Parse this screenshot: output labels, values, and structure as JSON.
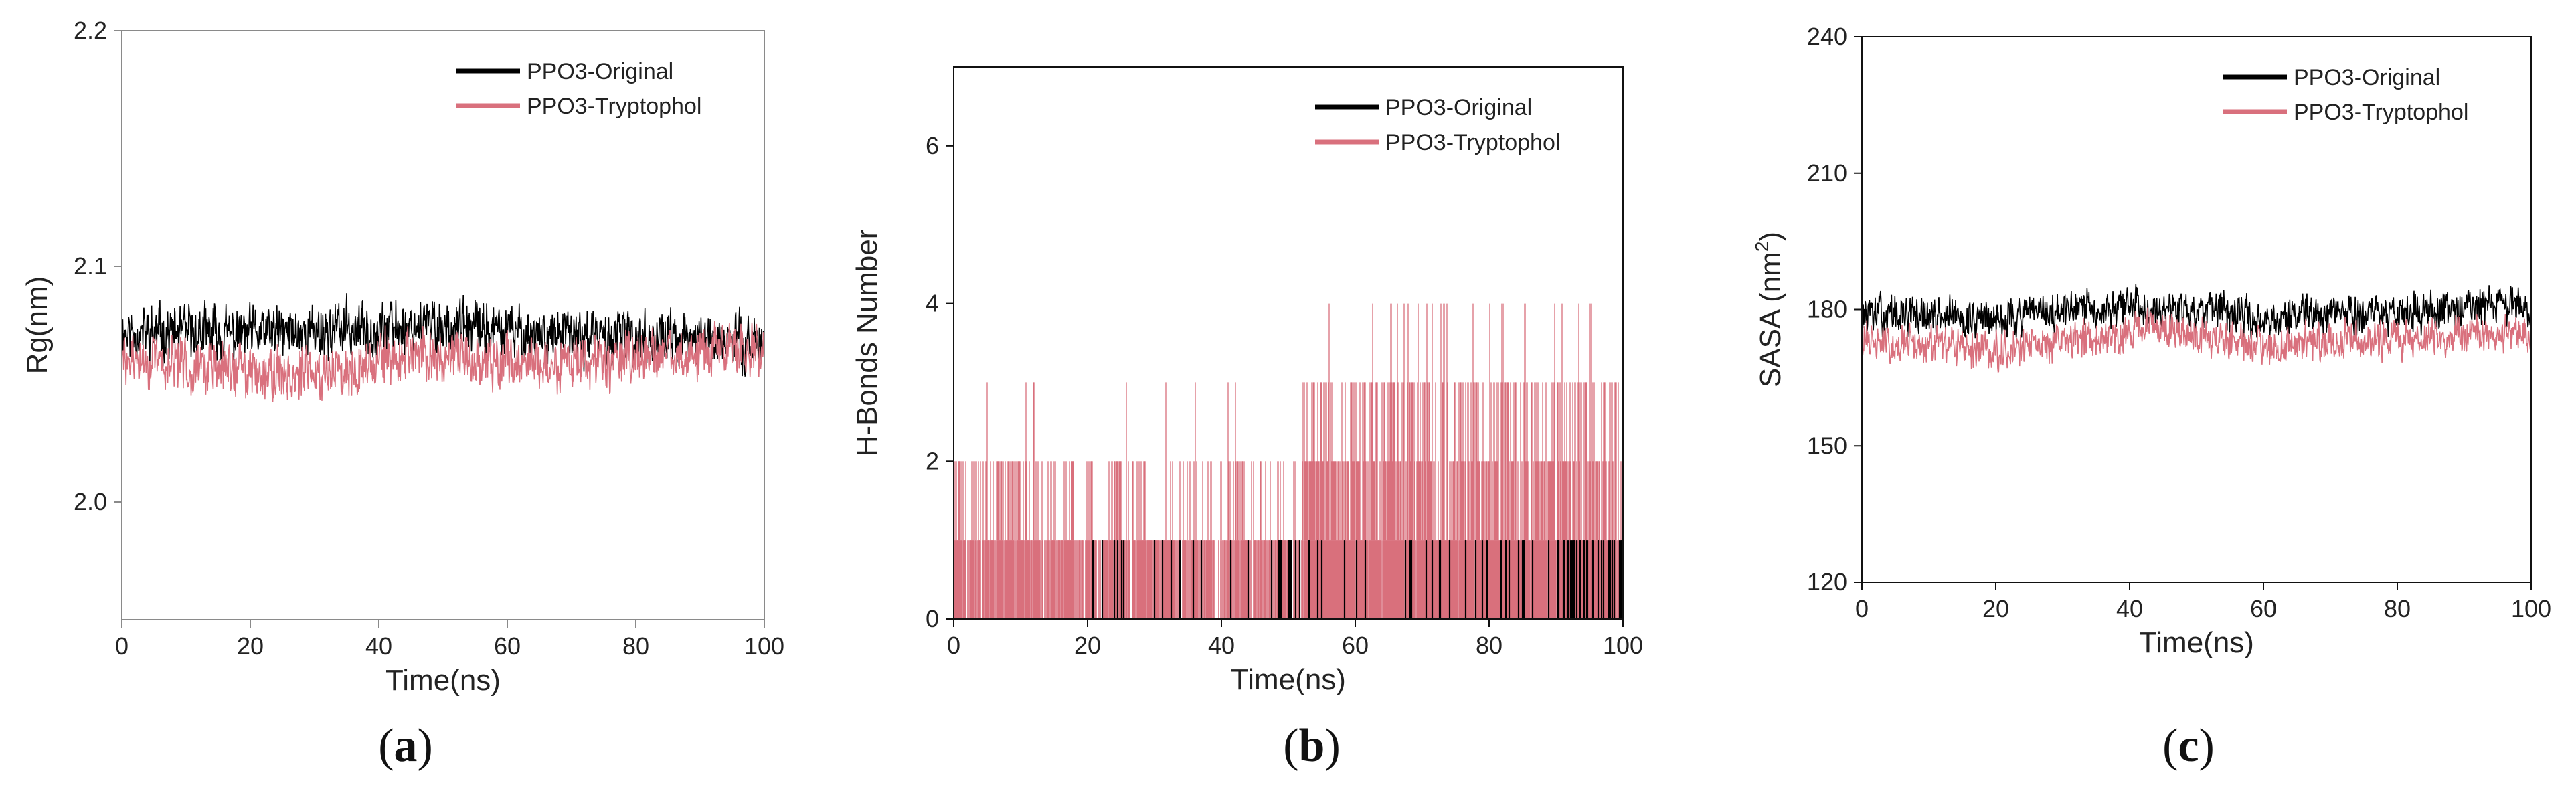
{
  "colors": {
    "original": "#000000",
    "tryptophol": "#d9707d"
  },
  "chart_data": [
    {
      "type": "line",
      "panel": "a",
      "caption_letter": "a",
      "xlabel": "Time(ns)",
      "ylabel": "Rg(nm)",
      "xlim": [
        0,
        100
      ],
      "ylim": [
        1.95,
        2.2
      ],
      "xticks": [
        "0",
        "20",
        "40",
        "60",
        "80",
        "100"
      ],
      "yticks": [
        "2.0",
        "2.1",
        "2.2"
      ],
      "ytick_values": [
        2.0,
        2.1,
        2.2
      ],
      "legend": [
        "PPO3-Original",
        "PPO3-Tryptophol"
      ],
      "legend_position": "top-right",
      "series": [
        {
          "name": "PPO3-Original",
          "mean": 2.072,
          "noise": 0.006,
          "trend": [
            [
              0,
              2.072
            ],
            [
              20,
              2.071
            ],
            [
              48,
              2.075
            ],
            [
              70,
              2.07
            ],
            [
              100,
              2.068
            ]
          ]
        },
        {
          "name": "PPO3-Tryptophol",
          "mean": 2.06,
          "noise": 0.006,
          "trend": [
            [
              0,
              2.06
            ],
            [
              28,
              2.054
            ],
            [
              45,
              2.062
            ],
            [
              70,
              2.058
            ],
            [
              100,
              2.066
            ]
          ]
        }
      ]
    },
    {
      "type": "line",
      "panel": "b",
      "caption_letter": "b",
      "xlabel": "Time(ns)",
      "ylabel": "H-Bonds Number",
      "xlim": [
        0,
        100
      ],
      "ylim": [
        0,
        7
      ],
      "xticks": [
        "0",
        "20",
        "40",
        "60",
        "80",
        "100"
      ],
      "yticks": [
        "0",
        "2",
        "4",
        "6"
      ],
      "ytick_values": [
        0,
        2,
        4,
        6
      ],
      "legend": [
        "PPO3-Original",
        "PPO3-Tryptophol"
      ],
      "legend_position": "top-right",
      "series": [
        {
          "name": "PPO3-Original",
          "discrete": true,
          "max": 1
        },
        {
          "name": "PPO3-Tryptophol",
          "discrete": true,
          "max": 4
        }
      ]
    },
    {
      "type": "line",
      "panel": "c",
      "caption_letter": "c",
      "xlabel": "Time(ns)",
      "ylabel": "SASA (nm",
      "ylabel_sup": "2",
      "ylabel_close": ")",
      "xlim": [
        0,
        100
      ],
      "ylim": [
        120,
        240
      ],
      "xticks": [
        "0",
        "20",
        "40",
        "60",
        "80",
        "100"
      ],
      "yticks": [
        "120",
        "150",
        "180",
        "210",
        "240"
      ],
      "ytick_values": [
        120,
        150,
        180,
        210,
        240
      ],
      "legend": [
        "PPO3-Original",
        "PPO3-Tryptophol"
      ],
      "legend_position": "top-right",
      "series": [
        {
          "name": "PPO3-Original",
          "mean": 179,
          "noise": 2.2,
          "trend": [
            [
              0,
              179
            ],
            [
              20,
              178
            ],
            [
              42,
              181
            ],
            [
              60,
              178
            ],
            [
              100,
              181
            ]
          ]
        },
        {
          "name": "PPO3-Tryptophol",
          "mean": 173,
          "noise": 2.2,
          "trend": [
            [
              0,
              173
            ],
            [
              20,
              171
            ],
            [
              44,
              176
            ],
            [
              60,
              172
            ],
            [
              100,
              175
            ]
          ]
        }
      ]
    }
  ]
}
